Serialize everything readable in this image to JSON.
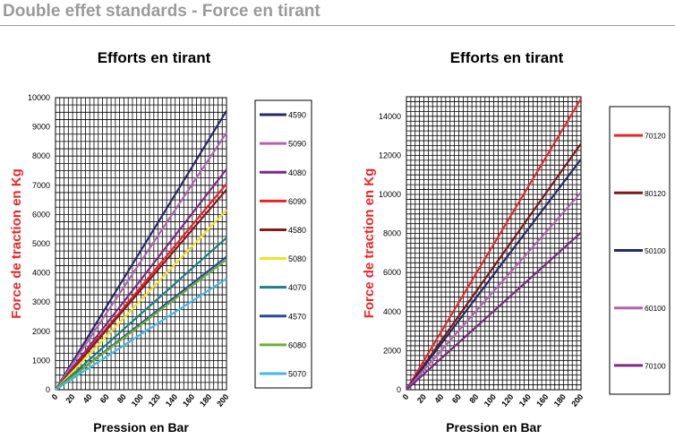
{
  "header": {
    "title": "Double effet standards - Force en tirant"
  },
  "chart_data": [
    {
      "type": "line",
      "title": "Efforts en tirant",
      "xlabel": "Pression  en Bar",
      "ylabel": "Force  de traction  en Kg",
      "xlim": [
        0,
        200
      ],
      "ylim": [
        0,
        10000
      ],
      "xticks": [
        0,
        20,
        40,
        60,
        80,
        100,
        120,
        140,
        160,
        180,
        200
      ],
      "yticks": [
        0,
        1000,
        2000,
        3000,
        4000,
        5000,
        6000,
        7000,
        8000,
        9000,
        10000
      ],
      "grid": true,
      "legend": "right",
      "series": [
        {
          "name": "4590",
          "color": "#262a66",
          "x": [
            0,
            200
          ],
          "y": [
            0,
            9550
          ]
        },
        {
          "name": "5090",
          "color": "#b064b0",
          "x": [
            0,
            200
          ],
          "y": [
            0,
            8800
          ]
        },
        {
          "name": "4080",
          "color": "#7a2a88",
          "x": [
            0,
            200
          ],
          "y": [
            0,
            7550
          ]
        },
        {
          "name": "6090",
          "color": "#e82228",
          "x": [
            0,
            200
          ],
          "y": [
            0,
            7050
          ]
        },
        {
          "name": "4580",
          "color": "#8a1a1a",
          "x": [
            0,
            200
          ],
          "y": [
            0,
            6850
          ]
        },
        {
          "name": "5080",
          "color": "#f2e224",
          "x": [
            0,
            200
          ],
          "y": [
            0,
            6150
          ]
        },
        {
          "name": "4070",
          "color": "#1a8080",
          "x": [
            0,
            200
          ],
          "y": [
            0,
            5200
          ]
        },
        {
          "name": "4570",
          "color": "#2a48a0",
          "x": [
            0,
            200
          ],
          "y": [
            0,
            4550
          ]
        },
        {
          "name": "6080",
          "color": "#6ab232",
          "x": [
            0,
            200
          ],
          "y": [
            0,
            4450
          ]
        },
        {
          "name": "5070",
          "color": "#42b8ea",
          "x": [
            0,
            200
          ],
          "y": [
            0,
            3800
          ]
        }
      ]
    },
    {
      "type": "line",
      "title": "Efforts en tirant",
      "xlabel": "Pression  en Bar",
      "ylabel": "Force de traction en Kg",
      "xlim": [
        0,
        200
      ],
      "ylim": [
        0,
        15000
      ],
      "xticks": [
        0,
        20,
        40,
        60,
        80,
        100,
        120,
        140,
        160,
        180,
        200
      ],
      "yticks": [
        0,
        2000,
        4000,
        6000,
        8000,
        10000,
        12000,
        14000
      ],
      "grid": true,
      "legend": "right",
      "series": [
        {
          "name": "70120",
          "color": "#e8282a",
          "x": [
            0,
            200
          ],
          "y": [
            0,
            14900
          ]
        },
        {
          "name": "80120",
          "color": "#7a1a1a",
          "x": [
            0,
            200
          ],
          "y": [
            0,
            12600
          ]
        },
        {
          "name": "50100",
          "color": "#262a66",
          "x": [
            0,
            200
          ],
          "y": [
            0,
            11800
          ]
        },
        {
          "name": "60100",
          "color": "#b064b0",
          "x": [
            0,
            200
          ],
          "y": [
            0,
            10100
          ]
        },
        {
          "name": "70100",
          "color": "#7a2a80",
          "x": [
            0,
            200
          ],
          "y": [
            0,
            8050
          ]
        }
      ]
    }
  ]
}
